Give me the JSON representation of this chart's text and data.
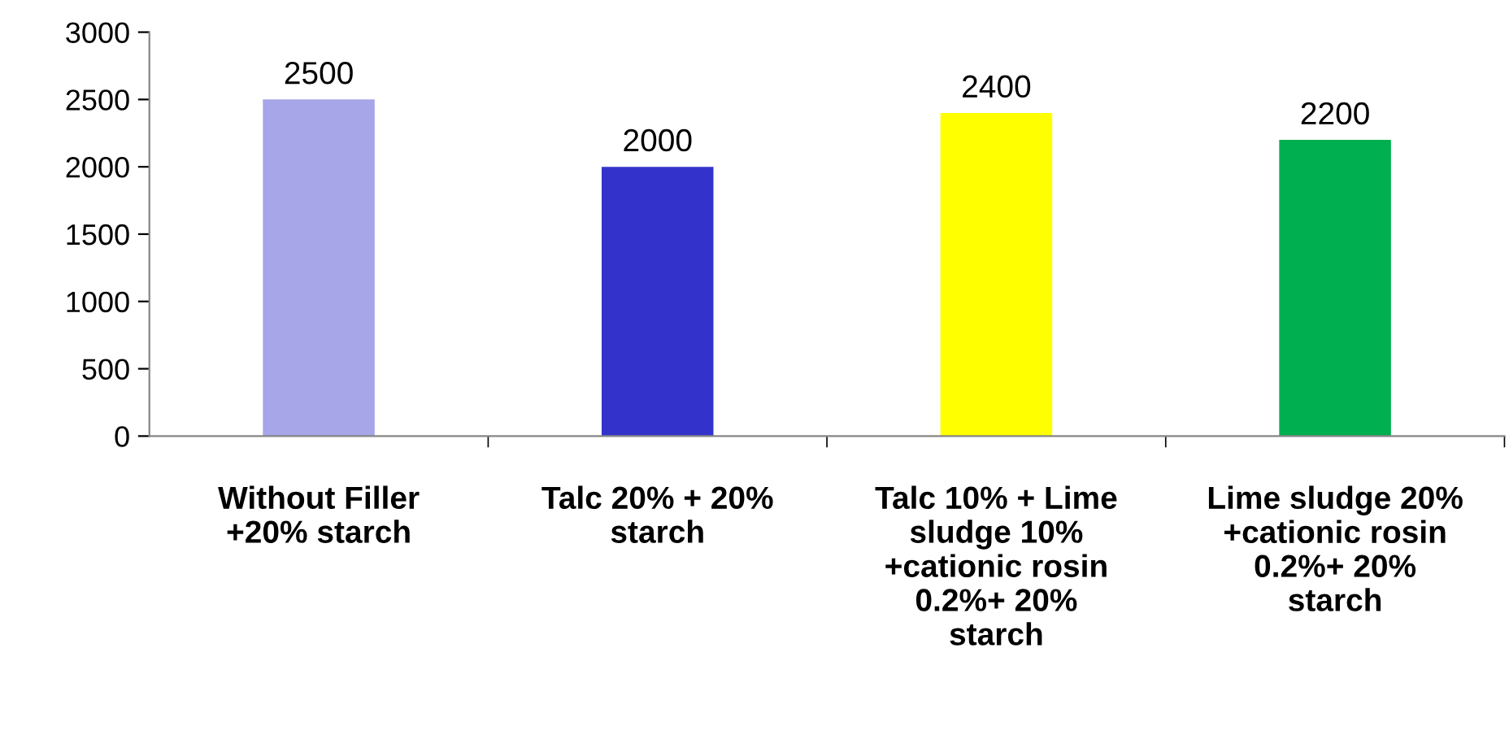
{
  "chart_data": {
    "type": "bar",
    "categories": [
      "Without Filler\n+20% starch",
      "Talc 20% + 20%\nstarch",
      "Talc 10% + Lime\nsludge 10%\n+cationic rosin\n0.2%+ 20%\nstarch",
      "Lime sludge 20%\n+cationic rosin\n0.2%+ 20%\nstarch"
    ],
    "values": [
      2500,
      2000,
      2400,
      2200
    ],
    "colors": [
      "#a6a6e8",
      "#3333cc",
      "#ffff00",
      "#00b050"
    ],
    "ylim": [
      0,
      3000
    ],
    "yticks": [
      0,
      500,
      1000,
      1500,
      2000,
      2500,
      3000
    ],
    "data_labels": true,
    "grid": false,
    "legend": false
  }
}
